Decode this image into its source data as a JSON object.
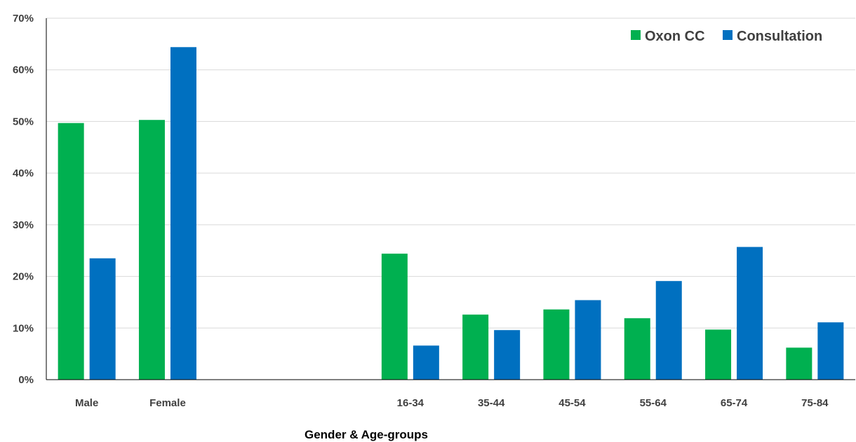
{
  "chart_data": {
    "type": "bar",
    "title": "",
    "xlabel": "Gender & Age-groups",
    "ylabel": "",
    "ylim": [
      0,
      70
    ],
    "yticks": [
      0,
      10,
      20,
      30,
      40,
      50,
      60,
      70
    ],
    "ytick_suffix": "%",
    "grid": true,
    "legend_position": "top-right",
    "categories": [
      "Male",
      "Female",
      "",
      "",
      "16-34",
      "35-44",
      "45-54",
      "55-64",
      "65-74",
      "75-84"
    ],
    "series": [
      {
        "name": "Oxon CC",
        "color": "#00b050",
        "values": [
          49.7,
          50.3,
          null,
          null,
          24.4,
          12.6,
          13.6,
          11.9,
          9.7,
          6.2
        ]
      },
      {
        "name": "Consultation",
        "color": "#0070c0",
        "values": [
          23.5,
          64.4,
          null,
          null,
          6.6,
          9.6,
          15.4,
          19.1,
          25.7,
          11.1
        ]
      }
    ]
  }
}
